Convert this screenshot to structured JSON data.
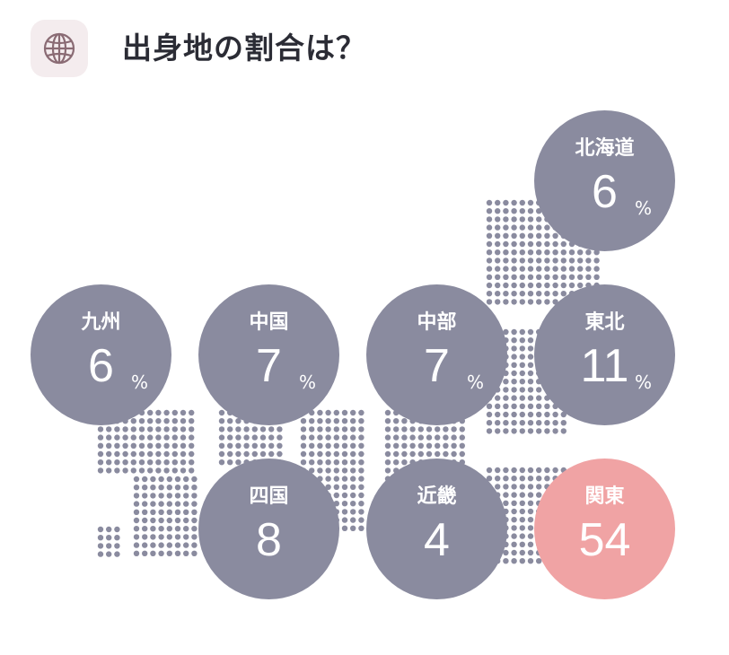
{
  "header": {
    "icon": "globe-icon",
    "title": "出身地の割合は？"
  },
  "colors": {
    "circle": "#8a8b9f",
    "highlight": "#f0a3a4",
    "dots": "#8a8b9f",
    "title": "#2b2c35",
    "icon_bg": "#f4ecee",
    "icon_stroke": "#8a6b74"
  },
  "regions": [
    {
      "id": "hokkaido",
      "name": "北海道",
      "value": "6",
      "unit": "%",
      "highlight": false
    },
    {
      "id": "kyushu",
      "name": "九州",
      "value": "6",
      "unit": "%",
      "highlight": false
    },
    {
      "id": "chugoku",
      "name": "中国",
      "value": "7",
      "unit": "%",
      "highlight": false
    },
    {
      "id": "chubu",
      "name": "中部",
      "value": "7",
      "unit": "%",
      "highlight": false
    },
    {
      "id": "tohoku",
      "name": "東北",
      "value": "11",
      "unit": "%",
      "highlight": false
    },
    {
      "id": "shikoku",
      "name": "四国",
      "value": "8",
      "unit": "",
      "highlight": false
    },
    {
      "id": "kinki",
      "name": "近畿",
      "value": "4",
      "unit": "",
      "highlight": false
    },
    {
      "id": "kanto",
      "name": "関東",
      "value": "54",
      "unit": "",
      "highlight": true
    }
  ]
}
